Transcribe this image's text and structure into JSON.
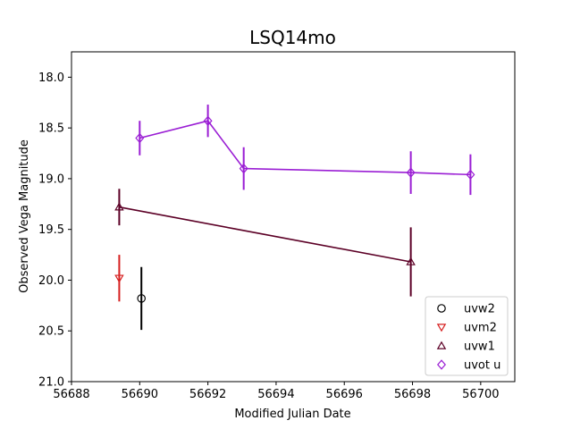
{
  "chart_data": {
    "type": "scatter",
    "title": "LSQ14mo",
    "xlabel": "Modified Julian Date",
    "ylabel": "Observed Vega Magnitude",
    "xlim": [
      56688,
      56701
    ],
    "ylim": [
      21.0,
      17.75
    ],
    "y_inverted": true,
    "xticks": [
      56688,
      56690,
      56692,
      56694,
      56696,
      56698,
      56700
    ],
    "yticks": [
      18.0,
      18.5,
      19.0,
      19.5,
      20.0,
      20.5,
      21.0
    ],
    "grid": false,
    "legend_position": "bottom-right",
    "series": [
      {
        "name": "uvw2",
        "marker": "circle",
        "color": "#000000",
        "connected": false,
        "points": [
          {
            "x": 56690.05,
            "y": 20.18,
            "err": 0.31
          }
        ]
      },
      {
        "name": "uvm2",
        "marker": "triangle-down",
        "color": "#d62020",
        "connected": false,
        "points": [
          {
            "x": 56689.4,
            "y": 19.98,
            "err": 0.23
          }
        ]
      },
      {
        "name": "uvw1",
        "marker": "triangle-up",
        "color": "#5c0026",
        "connected": true,
        "points": [
          {
            "x": 56689.4,
            "y": 19.28,
            "err": 0.18
          },
          {
            "x": 56697.95,
            "y": 19.82,
            "err": 0.34
          }
        ]
      },
      {
        "name": "uvot u",
        "marker": "diamond",
        "color": "#9a1ed4",
        "connected": true,
        "points": [
          {
            "x": 56690.0,
            "y": 18.6,
            "err": 0.17
          },
          {
            "x": 56692.0,
            "y": 18.43,
            "err": 0.16
          },
          {
            "x": 56693.05,
            "y": 18.9,
            "err": 0.21
          },
          {
            "x": 56697.95,
            "y": 18.94,
            "err": 0.21
          },
          {
            "x": 56699.7,
            "y": 18.96,
            "err": 0.2
          }
        ]
      }
    ]
  }
}
